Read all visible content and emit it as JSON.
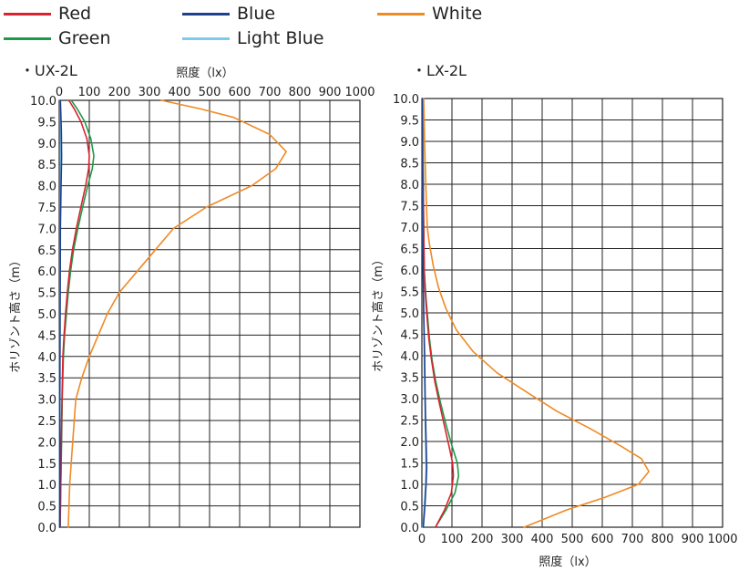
{
  "legend": [
    {
      "name": "Red",
      "color": "#d9232e"
    },
    {
      "name": "Blue",
      "color": "#1f3f8f"
    },
    {
      "name": "White",
      "color": "#f08a24"
    },
    {
      "name": "Green",
      "color": "#1e9a4a"
    },
    {
      "name": "Light Blue",
      "color": "#7fc9ef"
    }
  ],
  "chart_data": [
    {
      "type": "line",
      "title": "・UX-2L",
      "xlabel": "照度（lx）",
      "ylabel": "ホリゾント高さ（m）",
      "xlim": [
        0,
        1000
      ],
      "ylim": [
        0,
        10
      ],
      "xticks": [
        "0",
        "100",
        "200",
        "300",
        "400",
        "500",
        "600",
        "700",
        "800",
        "900",
        "1000"
      ],
      "yticks": [
        "0.0",
        "0.5",
        "1.0",
        "1.5",
        "2.0",
        "2.5",
        "3.0",
        "3.5",
        "4.0",
        "4.5",
        "5.0",
        "5.5",
        "6.0",
        "6.5",
        "7.0",
        "7.5",
        "8.0",
        "8.5",
        "9.0",
        "9.5",
        "10.0"
      ],
      "grid": true,
      "series": [
        {
          "name": "White",
          "color": "#f08a24",
          "points": [
            [
              30,
              0
            ],
            [
              35,
              1
            ],
            [
              45,
              2
            ],
            [
              55,
              3
            ],
            [
              75,
              3.5
            ],
            [
              100,
              4
            ],
            [
              130,
              4.5
            ],
            [
              160,
              5
            ],
            [
              200,
              5.5
            ],
            [
              260,
              6
            ],
            [
              320,
              6.5
            ],
            [
              380,
              7
            ],
            [
              490,
              7.5
            ],
            [
              640,
              8
            ],
            [
              720,
              8.4
            ],
            [
              755,
              8.8
            ],
            [
              700,
              9.2
            ],
            [
              580,
              9.6
            ],
            [
              470,
              9.8
            ],
            [
              340,
              10
            ]
          ]
        },
        {
          "name": "Green",
          "color": "#1e9a4a",
          "points": [
            [
              3,
              0
            ],
            [
              5,
              1
            ],
            [
              8,
              2
            ],
            [
              10,
              3
            ],
            [
              14,
              4
            ],
            [
              18,
              4.5
            ],
            [
              24,
              5
            ],
            [
              30,
              5.5
            ],
            [
              38,
              6
            ],
            [
              48,
              6.5
            ],
            [
              62,
              7
            ],
            [
              78,
              7.5
            ],
            [
              95,
              8
            ],
            [
              110,
              8.4
            ],
            [
              115,
              8.7
            ],
            [
              105,
              9.1
            ],
            [
              85,
              9.5
            ],
            [
              60,
              9.8
            ],
            [
              40,
              10
            ]
          ]
        },
        {
          "name": "Red",
          "color": "#d9232e",
          "points": [
            [
              3,
              0
            ],
            [
              5,
              1
            ],
            [
              7,
              2
            ],
            [
              9,
              3
            ],
            [
              12,
              4
            ],
            [
              16,
              4.5
            ],
            [
              21,
              5
            ],
            [
              27,
              5.5
            ],
            [
              34,
              6
            ],
            [
              44,
              6.5
            ],
            [
              57,
              7
            ],
            [
              72,
              7.5
            ],
            [
              88,
              8
            ],
            [
              98,
              8.4
            ],
            [
              100,
              8.7
            ],
            [
              92,
              9.1
            ],
            [
              72,
              9.5
            ],
            [
              50,
              9.8
            ],
            [
              32,
              10
            ]
          ]
        },
        {
          "name": "Light Blue",
          "color": "#7fc9ef",
          "points": [
            [
              1,
              0
            ],
            [
              1,
              3
            ],
            [
              2,
              5
            ],
            [
              3,
              7
            ],
            [
              4,
              8
            ],
            [
              5,
              8.7
            ],
            [
              4,
              9.3
            ],
            [
              3,
              10
            ]
          ]
        },
        {
          "name": "Blue",
          "color": "#1f3f8f",
          "points": [
            [
              2,
              0
            ],
            [
              2,
              3
            ],
            [
              3,
              5
            ],
            [
              4,
              7
            ],
            [
              6,
              8
            ],
            [
              8,
              8.7
            ],
            [
              7,
              9.3
            ],
            [
              4,
              10
            ]
          ]
        }
      ]
    },
    {
      "type": "line",
      "title": "・LX-2L",
      "xlabel": "照度（lx）",
      "ylabel": "ホリゾント高さ（m）",
      "xlim": [
        0,
        1000
      ],
      "ylim": [
        0,
        10
      ],
      "xticks": [
        "0",
        "100",
        "200",
        "300",
        "400",
        "500",
        "600",
        "700",
        "800",
        "900",
        "1000"
      ],
      "yticks": [
        "0.0",
        "0.5",
        "1.0",
        "1.5",
        "2.0",
        "2.5",
        "3.0",
        "3.5",
        "4.0",
        "4.5",
        "5.0",
        "5.5",
        "6.0",
        "6.5",
        "7.0",
        "7.5",
        "8.0",
        "8.5",
        "9.0",
        "9.5",
        "10.0"
      ],
      "grid": true,
      "series": [
        {
          "name": "White",
          "color": "#f08a24",
          "points": [
            [
              340,
              0
            ],
            [
              480,
              0.4
            ],
            [
              610,
              0.7
            ],
            [
              720,
              1
            ],
            [
              755,
              1.3
            ],
            [
              730,
              1.6
            ],
            [
              660,
              1.9
            ],
            [
              560,
              2.3
            ],
            [
              450,
              2.7
            ],
            [
              360,
              3.1
            ],
            [
              250,
              3.6
            ],
            [
              170,
              4.1
            ],
            [
              115,
              4.6
            ],
            [
              80,
              5.1
            ],
            [
              55,
              5.6
            ],
            [
              38,
              6.1
            ],
            [
              25,
              6.6
            ],
            [
              18,
              7
            ],
            [
              13,
              8
            ],
            [
              9,
              9
            ],
            [
              6,
              10
            ]
          ]
        },
        {
          "name": "Green",
          "color": "#1e9a4a",
          "points": [
            [
              45,
              0
            ],
            [
              80,
              0.4
            ],
            [
              110,
              0.8
            ],
            [
              122,
              1.2
            ],
            [
              118,
              1.5
            ],
            [
              100,
              1.9
            ],
            [
              80,
              2.4
            ],
            [
              62,
              2.9
            ],
            [
              46,
              3.4
            ],
            [
              34,
              3.9
            ],
            [
              25,
              4.4
            ],
            [
              18,
              5
            ],
            [
              12,
              5.5
            ],
            [
              8,
              6
            ],
            [
              6,
              7
            ],
            [
              5,
              8
            ],
            [
              4,
              9
            ],
            [
              3,
              10
            ]
          ]
        },
        {
          "name": "Red",
          "color": "#d9232e",
          "points": [
            [
              45,
              0
            ],
            [
              75,
              0.4
            ],
            [
              98,
              0.8
            ],
            [
              105,
              1.2
            ],
            [
              102,
              1.5
            ],
            [
              90,
              1.9
            ],
            [
              74,
              2.4
            ],
            [
              58,
              2.9
            ],
            [
              43,
              3.4
            ],
            [
              32,
              3.9
            ],
            [
              23,
              4.4
            ],
            [
              16,
              5
            ],
            [
              11,
              5.5
            ],
            [
              8,
              6
            ],
            [
              6,
              7
            ],
            [
              4,
              8
            ],
            [
              3,
              9
            ],
            [
              2,
              10
            ]
          ]
        },
        {
          "name": "Light Blue",
          "color": "#7fc9ef",
          "points": [
            [
              3,
              0
            ],
            [
              8,
              0.5
            ],
            [
              12,
              1
            ],
            [
              14,
              1.4
            ],
            [
              12,
              2
            ],
            [
              10,
              3
            ],
            [
              8,
              4
            ],
            [
              6,
              5
            ],
            [
              4,
              6
            ],
            [
              3,
              7
            ],
            [
              2,
              8
            ],
            [
              2,
              10
            ]
          ]
        },
        {
          "name": "Blue",
          "color": "#1f3f8f",
          "points": [
            [
              5,
              0
            ],
            [
              10,
              0.5
            ],
            [
              14,
              1
            ],
            [
              16,
              1.4
            ],
            [
              14,
              2
            ],
            [
              11,
              3
            ],
            [
              9,
              4
            ],
            [
              6,
              5
            ],
            [
              4,
              6
            ],
            [
              3,
              7
            ],
            [
              2,
              8
            ],
            [
              1,
              10
            ]
          ]
        }
      ]
    }
  ]
}
